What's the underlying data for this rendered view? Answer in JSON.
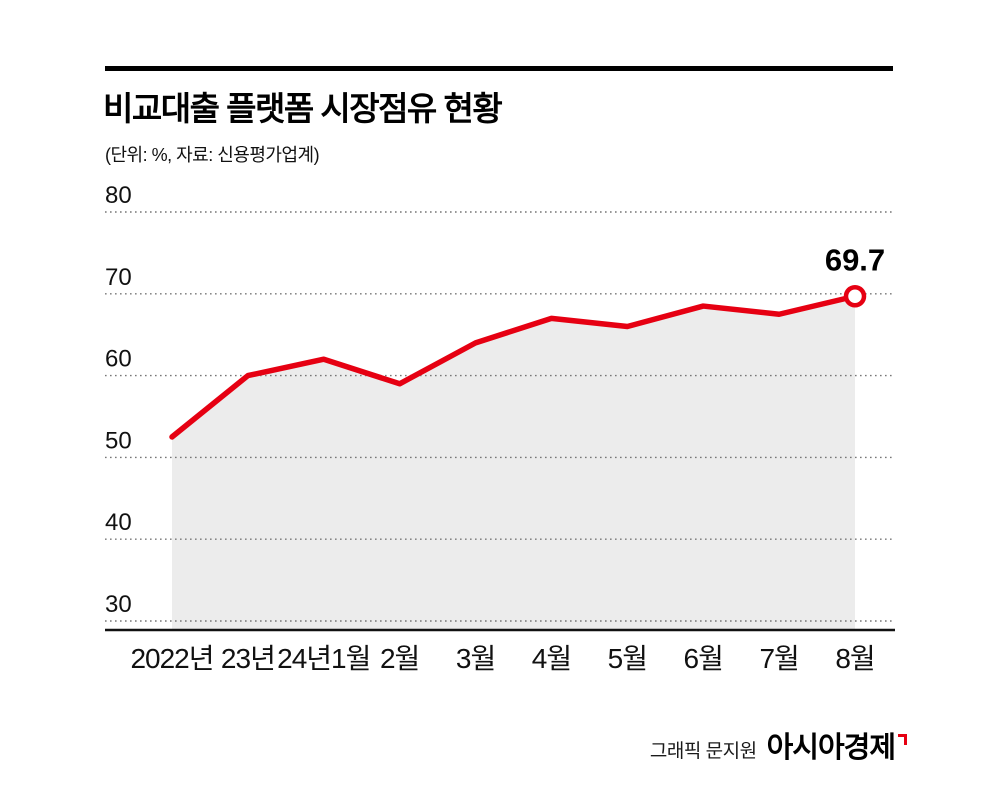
{
  "header": {
    "title": "비교대출 플랫폼 시장점유 현황",
    "subtitle": "(단위: %, 자료: 신용평가업계)"
  },
  "chart_data": {
    "type": "area",
    "title": "비교대출 플랫폼 시장점유 현황",
    "unit": "%",
    "source": "신용평가업계",
    "categories": [
      "2022년",
      "23년",
      "24년1월",
      "2월",
      "3월",
      "4월",
      "5월",
      "6월",
      "7월",
      "8월"
    ],
    "values": [
      52.5,
      60,
      62,
      59,
      64,
      67,
      66,
      68.5,
      67.5,
      69.7
    ],
    "ylim": [
      30,
      80
    ],
    "yticks": [
      30,
      40,
      50,
      60,
      70,
      80
    ],
    "grid": "dotted-horizontal",
    "legend": "none",
    "line_color": "#e60012",
    "area_color": "#ececec",
    "axis_color": "#111111",
    "grid_color": "#777777",
    "last_value_label": "69.7"
  },
  "footer": {
    "credit": "그래픽 문지원",
    "brand": "아시아경제"
  }
}
